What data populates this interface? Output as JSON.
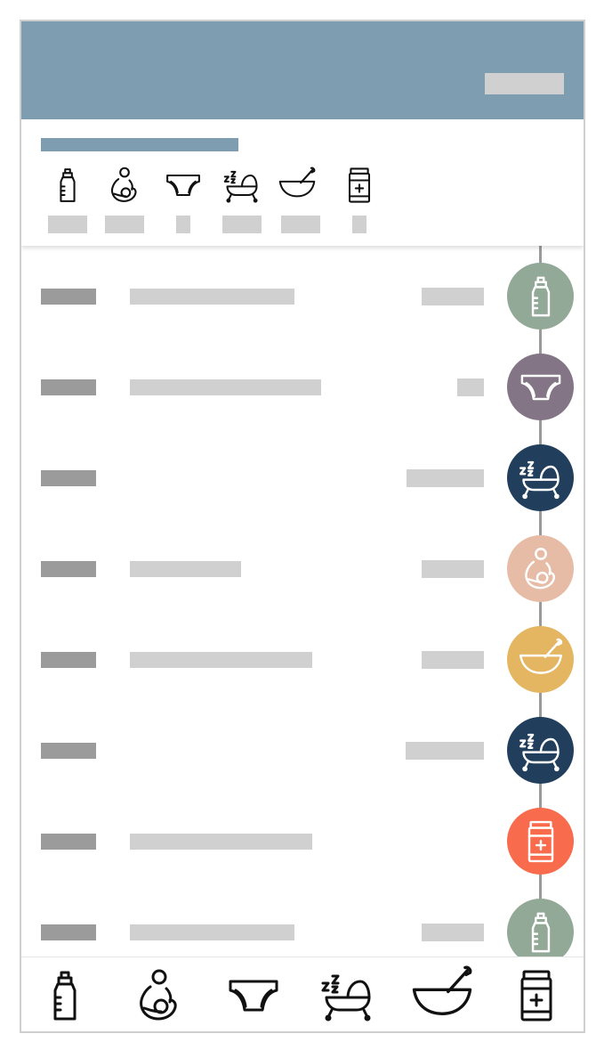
{
  "header": {
    "action_label": ""
  },
  "summary": {
    "title": "",
    "categories": [
      {
        "icon": "baby-bottle-icon",
        "count": ""
      },
      {
        "icon": "breastfeeding-icon",
        "count": ""
      },
      {
        "icon": "diaper-icon",
        "count": ""
      },
      {
        "icon": "sleep-bassinet-icon",
        "count": ""
      },
      {
        "icon": "food-bowl-icon",
        "count": ""
      },
      {
        "icon": "medicine-jar-icon",
        "count": ""
      }
    ]
  },
  "timeline": {
    "entries": [
      {
        "icon": "baby-bottle-icon",
        "color": "#93a997",
        "time": "",
        "note": "",
        "amount": ""
      },
      {
        "icon": "diaper-icon",
        "color": "#837585",
        "time": "",
        "note": "",
        "amount": ""
      },
      {
        "icon": "sleep-bassinet-icon",
        "color": "#213f5d",
        "time": "",
        "note": "",
        "amount": ""
      },
      {
        "icon": "breastfeeding-icon",
        "color": "#e6bca6",
        "time": "",
        "note": "",
        "amount": ""
      },
      {
        "icon": "food-bowl-icon",
        "color": "#e5b662",
        "time": "",
        "note": "",
        "amount": ""
      },
      {
        "icon": "sleep-bassinet-icon",
        "color": "#213f5d",
        "time": "",
        "note": "",
        "amount": ""
      },
      {
        "icon": "medicine-jar-icon",
        "color": "#f86b4c",
        "time": "",
        "note": "",
        "amount": ""
      },
      {
        "icon": "baby-bottle-icon",
        "color": "#93a997",
        "time": "",
        "note": "",
        "amount": ""
      }
    ]
  },
  "bottom_nav": [
    {
      "icon": "baby-bottle-icon"
    },
    {
      "icon": "breastfeeding-icon"
    },
    {
      "icon": "diaper-icon"
    },
    {
      "icon": "sleep-bassinet-icon"
    },
    {
      "icon": "food-bowl-icon"
    },
    {
      "icon": "medicine-jar-icon"
    }
  ]
}
